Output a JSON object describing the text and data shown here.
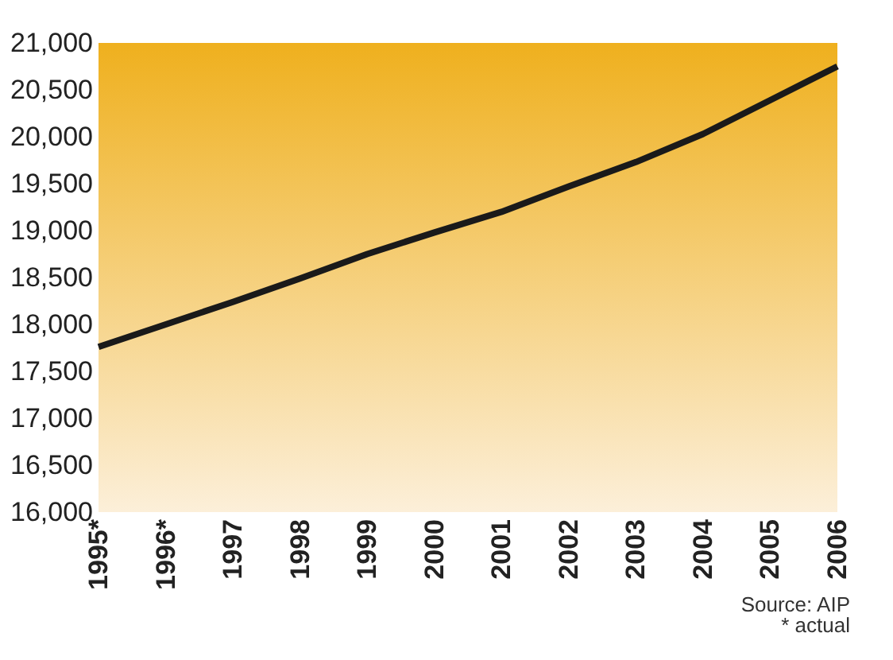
{
  "chart_data": {
    "type": "line",
    "categories": [
      "1995*",
      "1996*",
      "1997",
      "1998",
      "1999",
      "2000",
      "2001",
      "2002",
      "2003",
      "2004",
      "2005",
      "2006"
    ],
    "series": [
      {
        "color": "#1a1a1a",
        "values": [
          17760,
          18000,
          18240,
          18490,
          18750,
          18980,
          19200,
          19470,
          19730,
          20030,
          20390,
          20750
        ]
      }
    ],
    "ylim": [
      16000,
      21000
    ],
    "yticks": [
      {
        "value": 16000,
        "label": "16,000"
      },
      {
        "value": 16500,
        "label": "16,500"
      },
      {
        "value": 17000,
        "label": "17,000"
      },
      {
        "value": 17500,
        "label": "17,500"
      },
      {
        "value": 18000,
        "label": "18,000"
      },
      {
        "value": 18500,
        "label": "18,500"
      },
      {
        "value": 19000,
        "label": "19,000"
      },
      {
        "value": 19500,
        "label": "19,500"
      },
      {
        "value": 20000,
        "label": "20,000"
      },
      {
        "value": 20500,
        "label": "20,500"
      },
      {
        "value": 21000,
        "label": "21,000"
      }
    ],
    "annotations": [
      "Source: AIP",
      "* actual"
    ],
    "grid": false,
    "legend": false,
    "marker": "none",
    "line_style": "solid"
  }
}
